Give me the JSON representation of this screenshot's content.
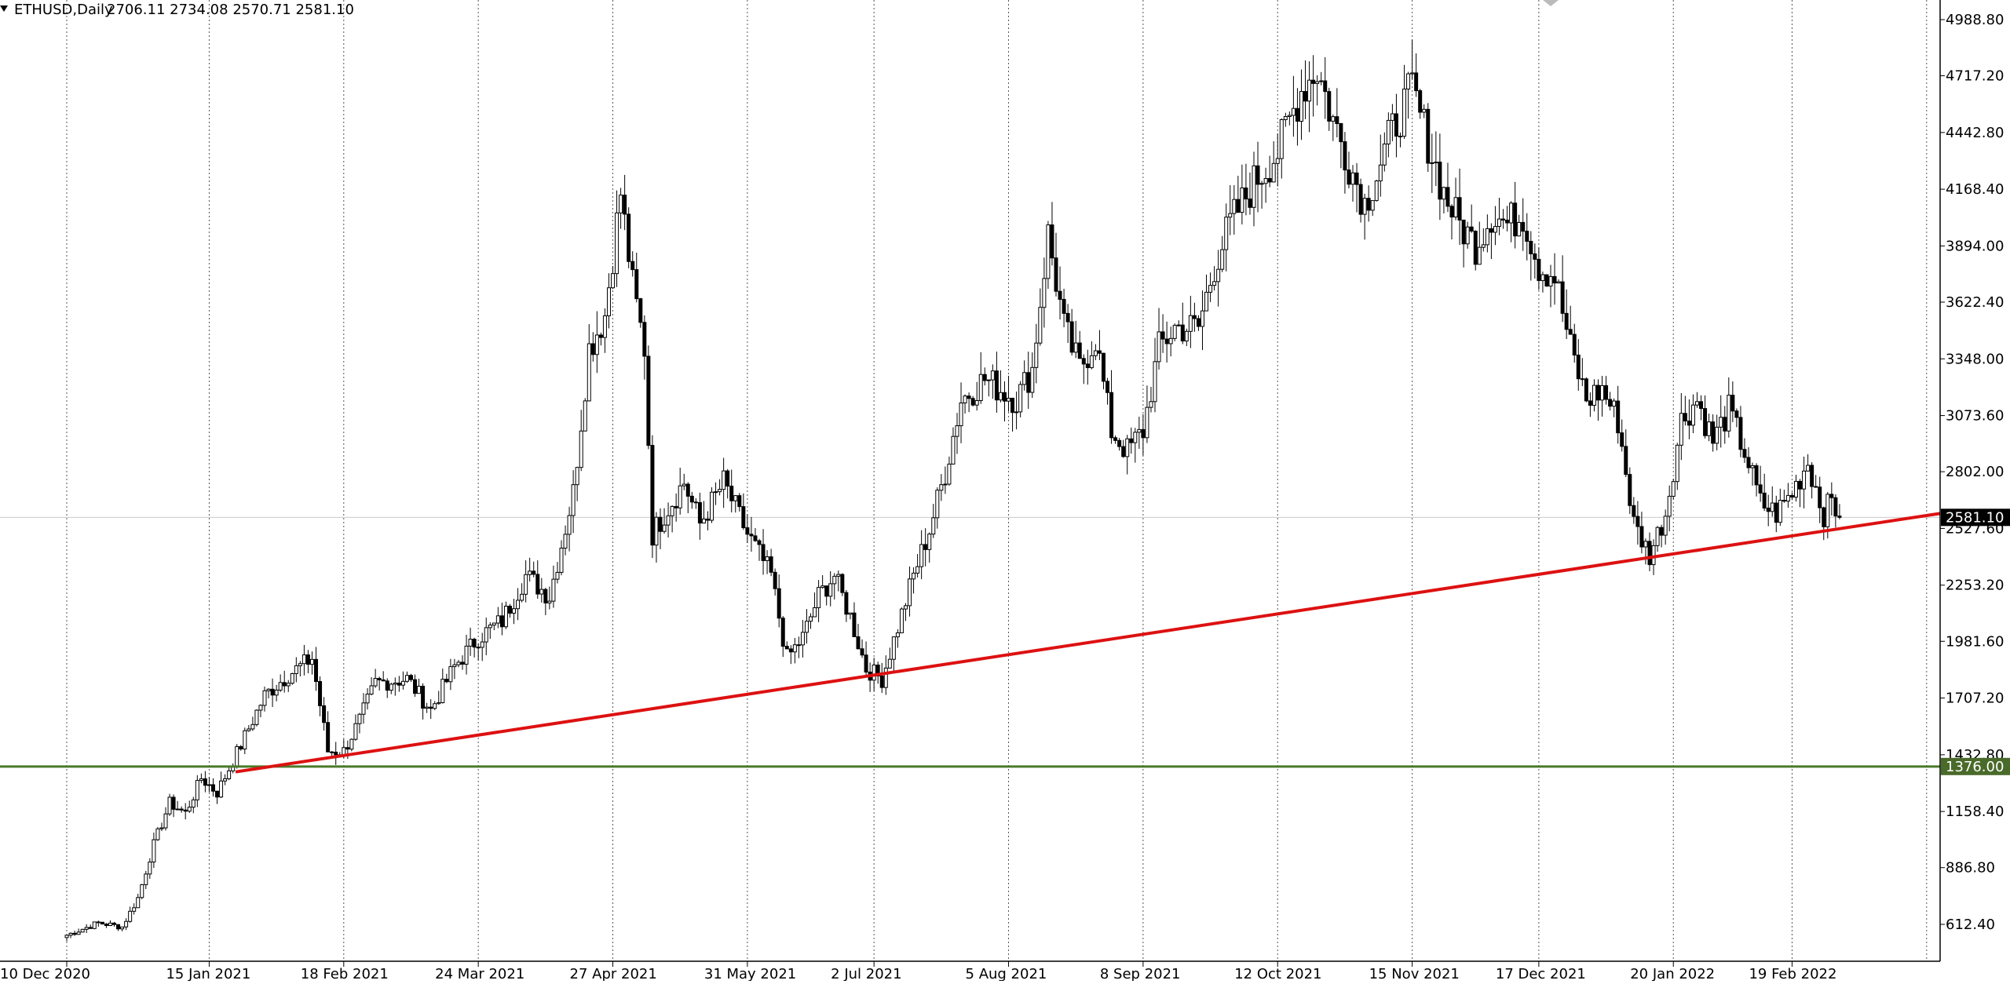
{
  "header": {
    "symbol": "ETHUSD,Daily",
    "ohlc": "2706.11 2734.08 2570.71 2581.10",
    "menu_icon": "triangle-down-icon"
  },
  "colors": {
    "background": "#ffffff",
    "candle": "#000000",
    "trendline": "#dd1111",
    "support_line": "#4a7a2a",
    "support_badge": "#4a6a2a",
    "current_badge": "#000000",
    "price_line": "#cccccc"
  },
  "chart_data": {
    "type": "candlestick",
    "symbol": "ETHUSD",
    "timeframe": "Daily",
    "y_ticks": [
      "4988.80",
      "4717.20",
      "4442.80",
      "4168.40",
      "3894.00",
      "3622.40",
      "3348.00",
      "3073.60",
      "2802.00",
      "2527.60",
      "2253.20",
      "1981.60",
      "1707.20",
      "1432.80",
      "1158.40",
      "886.80",
      "612.40"
    ],
    "y_tick_values": [
      4988.8,
      4717.2,
      4442.8,
      4168.4,
      3894.0,
      3622.4,
      3348.0,
      3073.6,
      2802.0,
      2527.6,
      2253.2,
      1981.6,
      1707.2,
      1432.8,
      1158.4,
      886.8,
      612.4
    ],
    "x_ticks": [
      "10 Dec 2020",
      "15 Jan 2021",
      "18 Feb 2021",
      "24 Mar 2021",
      "27 Apr 2021",
      "31 May 2021",
      "2 Jul 2021",
      "5 Aug 2021",
      "8 Sep 2021",
      "12 Oct 2021",
      "15 Nov 2021",
      "17 Dec 2021",
      "20 Jan 2022",
      "19 Feb 2022"
    ],
    "x_tick_days": [
      0,
      36,
      70,
      104,
      138,
      172,
      204,
      238,
      272,
      306,
      340,
      372,
      406,
      436
    ],
    "current_price": "2581.10",
    "current_price_value": 2581.1,
    "support_level": "1376.00",
    "support_value": 1376.0,
    "trendline": {
      "start": {
        "day": 64,
        "price": 1350
      },
      "end": {
        "day": 518,
        "price": 2600
      }
    },
    "key_points": [
      {
        "day": 0,
        "price": 560
      },
      {
        "day": 8,
        "price": 620
      },
      {
        "day": 14,
        "price": 600
      },
      {
        "day": 18,
        "price": 740
      },
      {
        "day": 22,
        "price": 1000
      },
      {
        "day": 26,
        "price": 1200
      },
      {
        "day": 30,
        "price": 1150
      },
      {
        "day": 34,
        "price": 1320
      },
      {
        "day": 38,
        "price": 1250
      },
      {
        "day": 44,
        "price": 1480
      },
      {
        "day": 50,
        "price": 1720
      },
      {
        "day": 56,
        "price": 1820
      },
      {
        "day": 62,
        "price": 1900
      },
      {
        "day": 66,
        "price": 1450
      },
      {
        "day": 70,
        "price": 1450
      },
      {
        "day": 74,
        "price": 1600
      },
      {
        "day": 78,
        "price": 1780
      },
      {
        "day": 86,
        "price": 1800
      },
      {
        "day": 92,
        "price": 1650
      },
      {
        "day": 98,
        "price": 1860
      },
      {
        "day": 104,
        "price": 2000
      },
      {
        "day": 110,
        "price": 2080
      },
      {
        "day": 116,
        "price": 2300
      },
      {
        "day": 122,
        "price": 2200
      },
      {
        "day": 128,
        "price": 2700
      },
      {
        "day": 132,
        "price": 3400
      },
      {
        "day": 136,
        "price": 3560
      },
      {
        "day": 140,
        "price": 4150
      },
      {
        "day": 143,
        "price": 3700
      },
      {
        "day": 146,
        "price": 3400
      },
      {
        "day": 148,
        "price": 2500
      },
      {
        "day": 151,
        "price": 2600
      },
      {
        "day": 156,
        "price": 2750
      },
      {
        "day": 160,
        "price": 2550
      },
      {
        "day": 166,
        "price": 2750
      },
      {
        "day": 172,
        "price": 2500
      },
      {
        "day": 178,
        "price": 2300
      },
      {
        "day": 182,
        "price": 1900
      },
      {
        "day": 186,
        "price": 2000
      },
      {
        "day": 190,
        "price": 2200
      },
      {
        "day": 194,
        "price": 2300
      },
      {
        "day": 198,
        "price": 2100
      },
      {
        "day": 202,
        "price": 1850
      },
      {
        "day": 206,
        "price": 1800
      },
      {
        "day": 210,
        "price": 2050
      },
      {
        "day": 214,
        "price": 2300
      },
      {
        "day": 218,
        "price": 2520
      },
      {
        "day": 222,
        "price": 2800
      },
      {
        "day": 226,
        "price": 3150
      },
      {
        "day": 232,
        "price": 3250
      },
      {
        "day": 240,
        "price": 3150
      },
      {
        "day": 244,
        "price": 3300
      },
      {
        "day": 248,
        "price": 3950
      },
      {
        "day": 252,
        "price": 3500
      },
      {
        "day": 256,
        "price": 3300
      },
      {
        "day": 260,
        "price": 3450
      },
      {
        "day": 264,
        "price": 3000
      },
      {
        "day": 268,
        "price": 2900
      },
      {
        "day": 272,
        "price": 3000
      },
      {
        "day": 276,
        "price": 3400
      },
      {
        "day": 280,
        "price": 3500
      },
      {
        "day": 286,
        "price": 3500
      },
      {
        "day": 290,
        "price": 3800
      },
      {
        "day": 294,
        "price": 4000
      },
      {
        "day": 300,
        "price": 4200
      },
      {
        "day": 306,
        "price": 4350
      },
      {
        "day": 312,
        "price": 4650
      },
      {
        "day": 316,
        "price": 4750
      },
      {
        "day": 320,
        "price": 4500
      },
      {
        "day": 324,
        "price": 4300
      },
      {
        "day": 328,
        "price": 4100
      },
      {
        "day": 332,
        "price": 4300
      },
      {
        "day": 336,
        "price": 4500
      },
      {
        "day": 340,
        "price": 4650
      },
      {
        "day": 344,
        "price": 4400
      },
      {
        "day": 348,
        "price": 4150
      },
      {
        "day": 352,
        "price": 4000
      },
      {
        "day": 356,
        "price": 3900
      },
      {
        "day": 360,
        "price": 4050
      },
      {
        "day": 364,
        "price": 4000
      },
      {
        "day": 368,
        "price": 4050
      },
      {
        "day": 372,
        "price": 3800
      },
      {
        "day": 376,
        "price": 3750
      },
      {
        "day": 380,
        "price": 3400
      },
      {
        "day": 384,
        "price": 3150
      },
      {
        "day": 388,
        "price": 3200
      },
      {
        "day": 392,
        "price": 3050
      },
      {
        "day": 396,
        "price": 2550
      },
      {
        "day": 400,
        "price": 2400
      },
      {
        "day": 404,
        "price": 2600
      },
      {
        "day": 408,
        "price": 3050
      },
      {
        "day": 412,
        "price": 3150
      },
      {
        "day": 416,
        "price": 2950
      },
      {
        "day": 420,
        "price": 3100
      },
      {
        "day": 424,
        "price": 2900
      },
      {
        "day": 428,
        "price": 2650
      },
      {
        "day": 432,
        "price": 2600
      },
      {
        "day": 436,
        "price": 2700
      },
      {
        "day": 440,
        "price": 2850
      },
      {
        "day": 444,
        "price": 2600
      },
      {
        "day": 446,
        "price": 2660
      },
      {
        "day": 448,
        "price": 2581
      }
    ]
  }
}
